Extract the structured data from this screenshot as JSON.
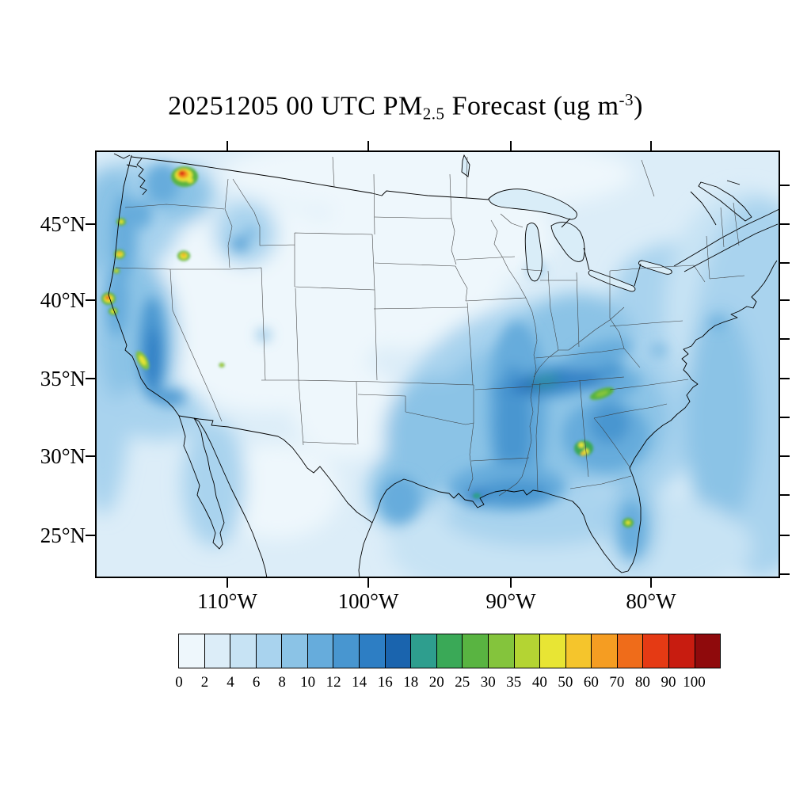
{
  "title": {
    "prefix": "20251205 00 UTC PM",
    "subscript": "2.5",
    "middle": " Forecast (ug m",
    "superscript": "-3",
    "suffix": ")"
  },
  "axes": {
    "lat_labels": [
      "45°N",
      "40°N",
      "35°N",
      "30°N",
      "25°N"
    ],
    "lon_labels": [
      "110°W",
      "100°W",
      "90°W",
      "80°W"
    ]
  },
  "colorbar": {
    "tick_labels": [
      "0",
      "2",
      "4",
      "6",
      "8",
      "10",
      "12",
      "14",
      "16",
      "18",
      "20",
      "25",
      "30",
      "35",
      "40",
      "50",
      "60",
      "70",
      "80",
      "90",
      "100"
    ],
    "colors": [
      "#eef7fc",
      "#dcedf8",
      "#c7e3f4",
      "#a9d3ee",
      "#8bc3e6",
      "#66acdc",
      "#4896d0",
      "#2d7ec4",
      "#1a64ae",
      "#2e9e8e",
      "#3aa957",
      "#59b441",
      "#84c43c",
      "#b4d433",
      "#e8e534",
      "#f5c52c",
      "#f59d22",
      "#ef6c1a",
      "#e53a14",
      "#c81c10",
      "#8f0a0c"
    ]
  }
}
